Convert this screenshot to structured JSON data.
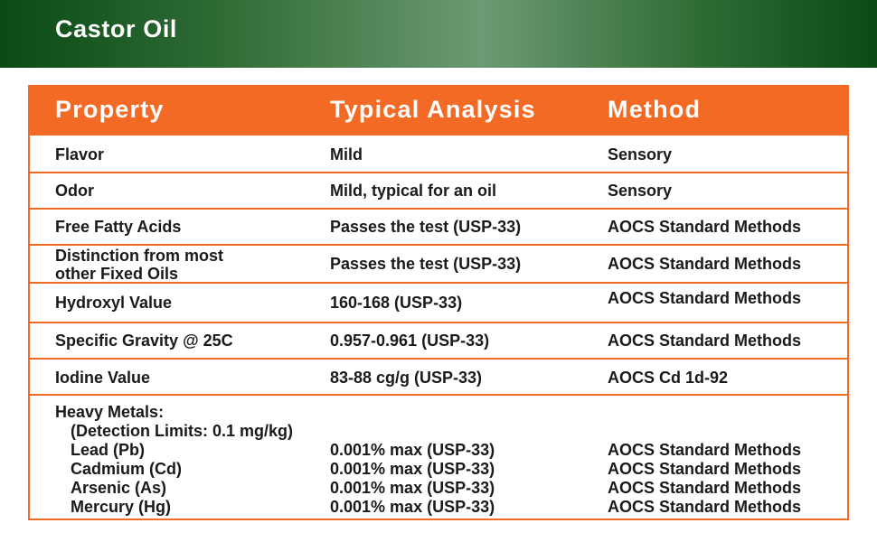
{
  "banner": {
    "title": "Castor Oil"
  },
  "table": {
    "headers": {
      "property": "Property",
      "analysis": "Typical Analysis",
      "method": "Method"
    },
    "rows": [
      {
        "property": "Flavor",
        "analysis": "Mild",
        "method": "Sensory"
      },
      {
        "property": "Odor",
        "analysis": "Mild, typical for an oil",
        "method": "Sensory"
      },
      {
        "property": "Free Fatty Acids",
        "analysis": "Passes the test (USP-33)",
        "method": "AOCS Standard Methods"
      },
      {
        "property_line1": "Distinction from most",
        "property_line2": "other Fixed Oils",
        "analysis": "Passes the test (USP-33)",
        "method": "AOCS Standard Methods"
      },
      {
        "property": "Hydroxyl Value",
        "analysis": "160-168 (USP-33)",
        "method": "AOCS Standard Methods"
      },
      {
        "property": "Specific Gravity @ 25C",
        "analysis": "0.957-0.961 (USP-33)",
        "method": "AOCS Standard Methods"
      },
      {
        "property": "Iodine Value",
        "analysis": "83-88 cg/g (USP-33)",
        "method": "AOCS Cd 1d-92"
      }
    ],
    "heavy_metals": {
      "label": "Heavy Metals:",
      "limits": "(Detection Limits: 0.1 mg/kg)",
      "items": [
        {
          "name": "Lead (Pb)",
          "analysis": "0.001% max (USP-33)",
          "method": "AOCS Standard Methods"
        },
        {
          "name": "Cadmium (Cd)",
          "analysis": "0.001% max (USP-33)",
          "method": "AOCS Standard Methods"
        },
        {
          "name": "Arsenic (As)",
          "analysis": "0.001% max (USP-33)",
          "method": "AOCS Standard Methods"
        },
        {
          "name": "Mercury (Hg)",
          "analysis": "0.001% max (USP-33)",
          "method": "AOCS Standard Methods"
        }
      ]
    }
  },
  "colors": {
    "accent": "#f26a24",
    "banner_dark": "#0b4a16",
    "banner_light": "#6c9a72"
  }
}
